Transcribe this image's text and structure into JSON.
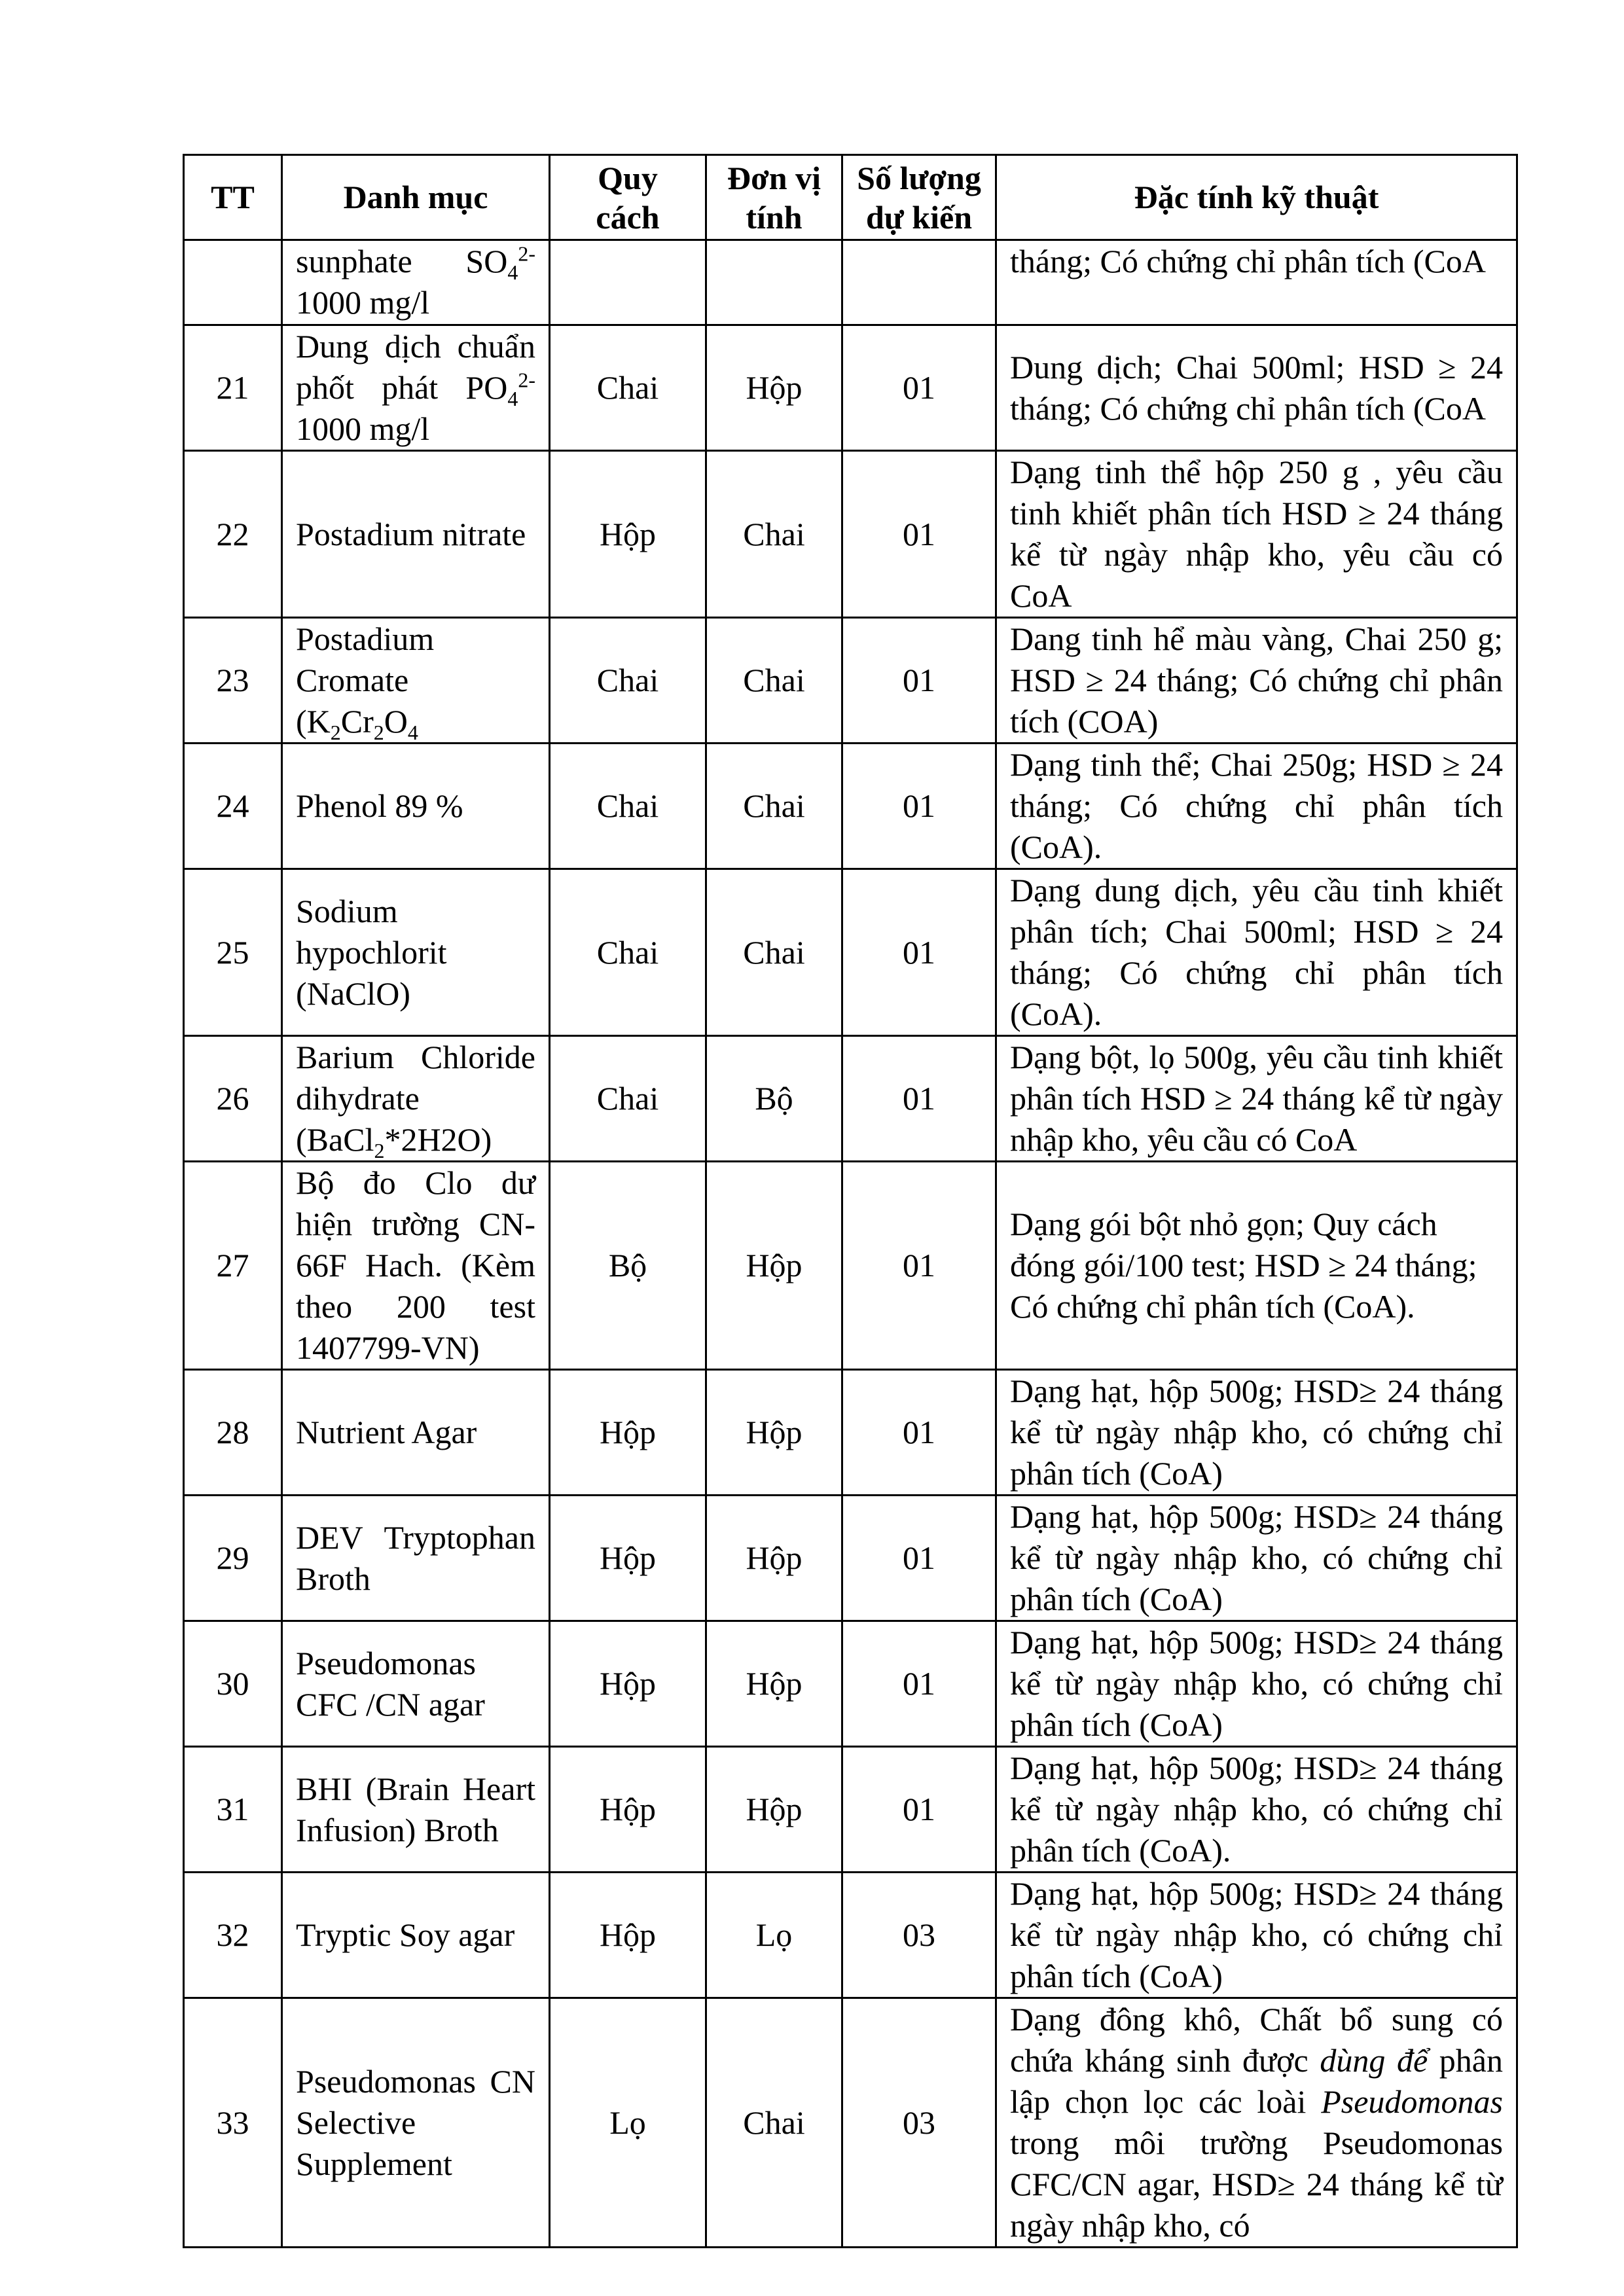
{
  "header": {
    "tt": "TT",
    "name": "Danh mục",
    "spec": "Quy cách",
    "unit": "Đơn vị tính",
    "qty": "Số lượng dự kiến",
    "desc": "Đặc tính kỹ thuật"
  },
  "rows": [
    {
      "tt": "",
      "name": [
        {
          "t": "sunphate SO"
        },
        {
          "t": "4",
          "sub": true
        },
        {
          "t": "2-",
          "sup": true
        },
        {
          "t": " 1000 mg/l"
        }
      ],
      "spec": "",
      "unit": "",
      "qty": "",
      "desc": [
        {
          "t": "tháng; Có chứng chỉ phân tích (CoA"
        }
      ],
      "cont": true
    },
    {
      "tt": "21",
      "name": [
        {
          "t": "Dung dịch chuẩn phốt phát PO"
        },
        {
          "t": "4",
          "sub": true
        },
        {
          "t": "2-",
          "sup": true
        },
        {
          "t": " 1000 mg/l"
        }
      ],
      "spec": "Chai",
      "unit": "Hộp",
      "qty": "01",
      "desc": [
        {
          "t": "Dung dịch; Chai 500ml; HSD ≥ 24 tháng; Có chứng chỉ phân tích (CoA"
        }
      ]
    },
    {
      "tt": "22",
      "name": [
        {
          "t": "Postadium nitrate"
        }
      ],
      "spec": "Hộp",
      "unit": "Chai",
      "qty": "01",
      "desc": [
        {
          "t": "Dạng tinh thể hộp 250 g , yêu cầu tinh khiết phân tích HSD ≥ 24 tháng kể từ ngày nhập kho, yêu cầu có CoA"
        }
      ]
    },
    {
      "tt": "23",
      "name": [
        {
          "t": "Postadium Cromate (K"
        },
        {
          "t": "2",
          "sub": true
        },
        {
          "t": "Cr"
        },
        {
          "t": "2",
          "sub": true
        },
        {
          "t": "O"
        },
        {
          "t": "4",
          "sub": true
        }
      ],
      "spec": "Chai",
      "unit": "Chai",
      "qty": "01",
      "desc": [
        {
          "t": "Dang tinh hể màu vàng, Chai 250 g; HSD ≥ 24 tháng; Có chứng chỉ phân tích (COA)"
        }
      ]
    },
    {
      "tt": "24",
      "name": [
        {
          "t": "Phenol  89 %"
        }
      ],
      "spec": "Chai",
      "unit": "Chai",
      "qty": "01",
      "desc": [
        {
          "t": "Dạng tinh thể; Chai 250g; HSD ≥ 24 tháng; Có chứng chỉ phân tích (CoA)."
        }
      ]
    },
    {
      "tt": "25",
      "name": [
        {
          "t": "Sodium hypochlorit (NaClO)"
        }
      ],
      "spec": "Chai",
      "unit": "Chai",
      "qty": "01",
      "desc": [
        {
          "t": "Dạng dung dịch, yêu cầu tinh khiết phân tích; Chai 500ml; HSD ≥ 24 tháng; Có chứng chỉ phân tích (CoA)."
        }
      ]
    },
    {
      "tt": "26",
      "name": [
        {
          "t": "Barium Chloride dihydrate (BaCl"
        },
        {
          "t": "2",
          "sub": true
        },
        {
          "t": "*2H2O)"
        }
      ],
      "spec": "Chai",
      "unit": "Bộ",
      "qty": "01",
      "desc": [
        {
          "t": "Dạng bột, lọ 500g, yêu cầu tinh khiết phân tích HSD ≥ 24 tháng kể từ ngày nhập kho, yêu cầu có CoA"
        }
      ]
    },
    {
      "tt": "27",
      "name": [
        {
          "t": "Bộ đo Clo dư hiện trường CN-66F Hach. (Kèm theo 200 test 1407799-VN)"
        }
      ],
      "spec": "Bộ",
      "unit": "Hộp",
      "qty": "01",
      "desc": [
        {
          "t": "Dạng gói bột nhỏ gọn; Quy cách đóng gói/100 test; HSD ≥ 24 tháng; Có chứng chỉ phân tích (CoA)."
        }
      ],
      "left": true
    },
    {
      "tt": "28",
      "name": [
        {
          "t": "Nutrient Agar"
        }
      ],
      "spec": "Hộp",
      "unit": "Hộp",
      "qty": "01",
      "desc": [
        {
          "t": "Dạng hạt, hộp 500g; HSD≥ 24 tháng kể từ ngày nhập kho, có chứng chỉ phân tích (CoA)"
        }
      ]
    },
    {
      "tt": "29",
      "name": [
        {
          "t": "DEV Tryptophan Broth"
        }
      ],
      "spec": "Hộp",
      "unit": "Hộp",
      "qty": "01",
      "desc": [
        {
          "t": "Dạng hạt, hộp 500g; HSD≥ 24 tháng kể từ ngày nhập kho, có chứng chỉ phân tích (CoA)"
        }
      ]
    },
    {
      "tt": "30",
      "name": [
        {
          "t": "Pseudomonas CFC /CN agar"
        }
      ],
      "spec": "Hộp",
      "unit": "Hộp",
      "qty": "01",
      "desc": [
        {
          "t": "Dạng hạt, hộp 500g; HSD≥ 24 tháng kể từ ngày nhập kho, có chứng chỉ phân tích (CoA)"
        }
      ]
    },
    {
      "tt": "31",
      "name": [
        {
          "t": " BHI (Brain Heart Infusion)  Broth"
        }
      ],
      "spec": "Hộp",
      "unit": "Hộp",
      "qty": "01",
      "desc": [
        {
          "t": "Dạng hạt, hộp 500g; HSD≥ 24 tháng kể từ ngày nhập kho, có chứng chỉ phân tích (CoA)."
        }
      ]
    },
    {
      "tt": "32",
      "name": [
        {
          "t": "Tryptic Soy agar"
        }
      ],
      "spec": "Hộp",
      "unit": "Lọ",
      "qty": "03",
      "desc": [
        {
          "t": "Dạng hạt, hộp 500g; HSD≥ 24 tháng kể từ ngày nhập kho, có chứng chỉ phân tích (CoA)"
        }
      ]
    },
    {
      "tt": "33",
      "name": [
        {
          "t": "Pseudomonas CN Selective Supplement"
        }
      ],
      "spec": "Lọ",
      "unit": "Chai",
      "qty": "03",
      "desc": [
        {
          "t": "Dạng đông khô, Chất bổ sung có chứa kháng sinh được "
        },
        {
          "t": "dùng để",
          "i": true
        },
        {
          "t": " phân lập chọn lọc các loài "
        },
        {
          "t": "Pseudomonas",
          "i": true
        },
        {
          "t": " trong môi trường Pseudomonas CFC/CN agar, HSD≥ 24 tháng kể từ ngày nhập kho, có"
        }
      ]
    }
  ]
}
